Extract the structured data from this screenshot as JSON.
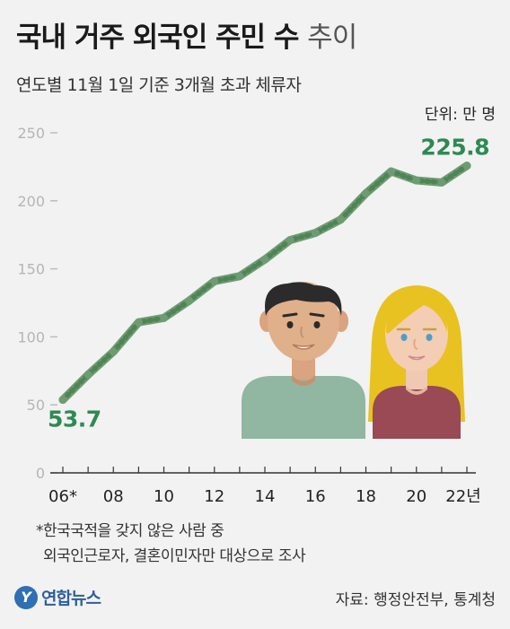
{
  "header": {
    "title_main": "국내 거주 외국인 주민 수",
    "title_light": "추이",
    "subtitle": "연도별 11월 1일 기준 3개월 초과 체류자",
    "unit": "단위: 만 명"
  },
  "chart_data": {
    "type": "line",
    "title": "국내 거주 외국인 주민 수 추이",
    "xlabel": "",
    "ylabel": "",
    "x": [
      2006,
      2007,
      2008,
      2009,
      2010,
      2011,
      2012,
      2013,
      2014,
      2015,
      2016,
      2017,
      2018,
      2019,
      2020,
      2021,
      2022
    ],
    "x_tick_labels": [
      "06*",
      "08",
      "10",
      "12",
      "14",
      "16",
      "18",
      "20",
      "22년"
    ],
    "x_tick_years": [
      2006,
      2008,
      2010,
      2012,
      2014,
      2016,
      2018,
      2020,
      2022
    ],
    "series": [
      {
        "name": "",
        "color": "#6e9c72",
        "values": [
          53.7,
          72.2,
          89.1,
          110.7,
          113.9,
          126.5,
          140.9,
          144.6,
          156.9,
          171.1,
          176.4,
          186.2,
          205.5,
          221.6,
          215.0,
          213.5,
          225.8
        ]
      }
    ],
    "ylim": [
      0,
      250
    ],
    "yticks": [
      0,
      50,
      100,
      150,
      200,
      250
    ],
    "data_labels": {
      "first": "53.7",
      "last": "225.8"
    },
    "label_color": "#2d8a52",
    "grid": false
  },
  "footnote": {
    "line1": "*한국국적을 갖지 않은 사람 중",
    "line2": "외국인근로자, 결혼이민자만 대상으로 조사"
  },
  "footer": {
    "logo_text": "연합뉴스",
    "source": "자료: 행정안전부, 통계청"
  }
}
